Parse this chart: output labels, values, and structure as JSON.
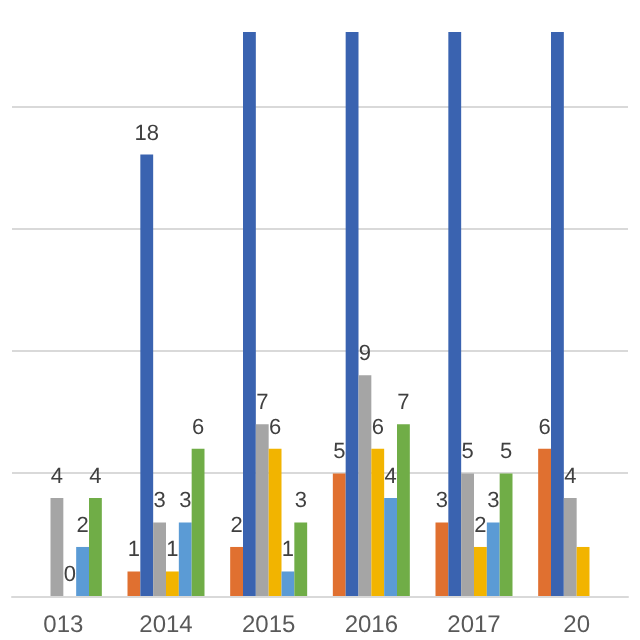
{
  "chart_data": {
    "type": "bar",
    "categories": [
      "013",
      "2014",
      "2015",
      "2016",
      "2017",
      "20"
    ],
    "series": [
      {
        "color": "#e07030",
        "values": [
          null,
          1,
          2,
          5,
          3,
          6
        ],
        "value_labels": [
          null,
          "1",
          "2",
          "5",
          "3",
          "6"
        ]
      },
      {
        "color": "#3a63b0",
        "values": [
          null,
          18,
          23,
          23,
          23,
          23
        ],
        "value_labels": [
          null,
          "18",
          null,
          null,
          null,
          null
        ]
      },
      {
        "color": "#a5a5a5",
        "values": [
          4,
          3,
          7,
          9,
          5,
          4
        ],
        "value_labels": [
          "4",
          "3",
          "7",
          "9",
          "5",
          "4"
        ]
      },
      {
        "color": "#f2b400",
        "values": [
          0,
          1,
          6,
          6,
          2,
          2
        ],
        "value_labels": [
          "0",
          "1",
          "6",
          "6",
          "2",
          null
        ]
      },
      {
        "color": "#5b9bd5",
        "values": [
          2,
          3,
          1,
          4,
          3,
          null
        ],
        "value_labels": [
          "2",
          "3",
          "1",
          "4",
          "3",
          null
        ]
      },
      {
        "color": "#70ad47",
        "values": [
          4,
          6,
          3,
          7,
          5,
          null
        ],
        "value_labels": [
          "4",
          "6",
          "3",
          "7",
          "5",
          null
        ]
      }
    ],
    "ylim": [
      0,
      23
    ],
    "yticks": [
      0,
      5,
      10,
      15,
      20
    ],
    "grid": "y",
    "tick_labels": "x"
  }
}
